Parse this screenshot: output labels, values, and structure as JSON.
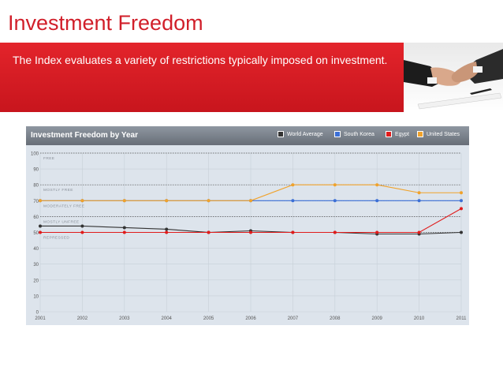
{
  "page": {
    "title": "Investment Freedom",
    "description": "The Index evaluates a variety of restrictions typically imposed on investment."
  },
  "colors": {
    "title_red": "#d11f2a",
    "banner_red": "#d7181f",
    "world_average": "#333333",
    "south_korea": "#3b6fd6",
    "egypt": "#e01b1b",
    "united_states": "#f0a22b"
  },
  "chart_data": {
    "type": "line",
    "title": "Investment Freedom by Year",
    "categories": [
      "2001",
      "2002",
      "2003",
      "2004",
      "2005",
      "2006",
      "2007",
      "2008",
      "2009",
      "2010",
      "2011"
    ],
    "ylim": [
      0,
      100
    ],
    "yticks": [
      "0",
      "10",
      "20",
      "30",
      "40",
      "50",
      "60",
      "70",
      "80",
      "90",
      "100"
    ],
    "legend_position": "top-right",
    "grid": true,
    "bands": [
      {
        "label": "FREE",
        "value": 100
      },
      {
        "label": "MOSTLY FREE",
        "value": 80
      },
      {
        "label": "MODERATELY FREE",
        "value": 70
      },
      {
        "label": "MOSTLY UNFREE",
        "value": 60
      },
      {
        "label": "REPRESSED",
        "value": 50
      }
    ],
    "series": [
      {
        "name": "World Average",
        "color": "#333333",
        "values": [
          54,
          54,
          53,
          52,
          50,
          51,
          50,
          50,
          49,
          49,
          50
        ]
      },
      {
        "name": "South Korea",
        "color": "#3b6fd6",
        "values": [
          70,
          70,
          70,
          70,
          70,
          70,
          70,
          70,
          70,
          70,
          70
        ]
      },
      {
        "name": "Egypt",
        "color": "#e01b1b",
        "values": [
          50,
          50,
          50,
          50,
          50,
          50,
          50,
          50,
          50,
          50,
          65
        ]
      },
      {
        "name": "United States",
        "color": "#f0a22b",
        "values": [
          70,
          70,
          70,
          70,
          70,
          70,
          80,
          80,
          80,
          75,
          75
        ]
      }
    ]
  }
}
